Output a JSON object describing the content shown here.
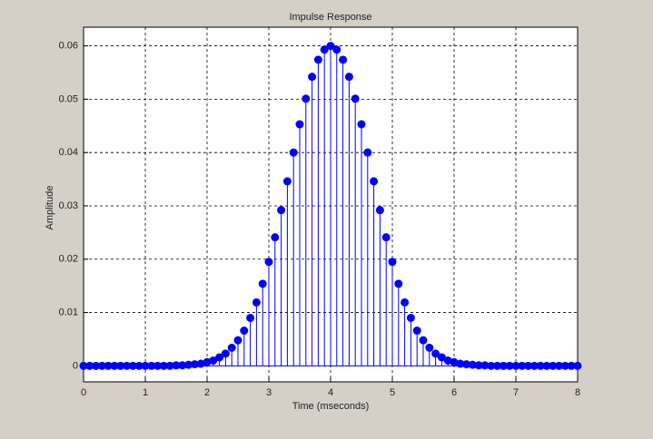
{
  "chart_data": {
    "type": "stem",
    "title": "Impulse Response",
    "x_label": "Time (mseconds)",
    "y_label": "Amplitude",
    "x": [
      0,
      0.1,
      0.2,
      0.3,
      0.4,
      0.5,
      0.6,
      0.7,
      0.8,
      0.9,
      1,
      1.1,
      1.2,
      1.3,
      1.4,
      1.5,
      1.6,
      1.7,
      1.8,
      1.9,
      2,
      2.1,
      2.2,
      2.3,
      2.4,
      2.5,
      2.6,
      2.7,
      2.8,
      2.9,
      3,
      3.1,
      3.2,
      3.3,
      3.4,
      3.5,
      3.6,
      3.7,
      3.8,
      3.9,
      4,
      4.1,
      4.2,
      4.3,
      4.4,
      4.5,
      4.6,
      4.7,
      4.8,
      4.9,
      5,
      5.1,
      5.2,
      5.3,
      5.4,
      5.5,
      5.6,
      5.7,
      5.8,
      5.9,
      6,
      6.1,
      6.2,
      6.3,
      6.4,
      6.5,
      6.6,
      6.7,
      6.8,
      6.9,
      7,
      7.1,
      7.2,
      7.3,
      7.4,
      7.5,
      7.6,
      7.7,
      7.8,
      7.9,
      8
    ],
    "values": [
      0,
      0,
      0,
      0,
      0,
      0,
      0,
      0,
      0,
      0,
      0,
      0,
      0,
      0,
      0,
      0.0001,
      0.0001,
      0.0002,
      0.0003,
      0.0004,
      0.0007,
      0.001,
      0.0016,
      0.0023,
      0.0034,
      0.0048,
      0.0066,
      0.009,
      0.0119,
      0.0154,
      0.0195,
      0.0241,
      0.0292,
      0.0346,
      0.04,
      0.0453,
      0.0501,
      0.0542,
      0.0574,
      0.0593,
      0.06,
      0.0593,
      0.0574,
      0.0542,
      0.0501,
      0.0453,
      0.04,
      0.0346,
      0.0292,
      0.0241,
      0.0195,
      0.0154,
      0.0119,
      0.009,
      0.0066,
      0.0048,
      0.0034,
      0.0023,
      0.0016,
      0.001,
      0.0007,
      0.0004,
      0.0003,
      0.0002,
      0.0001,
      0.0001,
      0,
      0,
      0,
      0,
      0,
      0,
      0,
      0,
      0,
      0,
      0,
      0,
      0,
      0,
      0
    ],
    "color": "#0000ff",
    "xlim": [
      0,
      8
    ],
    "xticks": [
      0,
      1,
      2,
      3,
      4,
      5,
      6,
      7,
      8
    ],
    "ylim": [
      -0.003,
      0.0635
    ],
    "yticks": [
      0,
      0.01,
      0.02,
      0.03,
      0.04,
      0.05,
      0.06
    ],
    "grid": true
  }
}
